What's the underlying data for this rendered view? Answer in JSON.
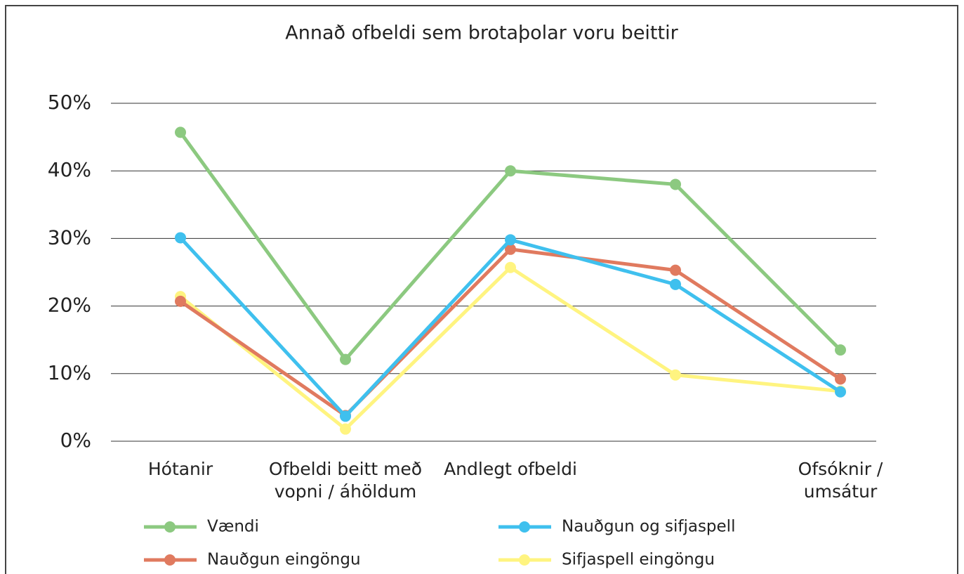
{
  "chart_data": {
    "type": "line",
    "title": "Annað ofbeldi sem brotaþolar voru beittir",
    "categories": [
      "Hótanir",
      "Ofbeldi beitt með vopni / áhöldum",
      "Andlegt ofbeldi",
      null,
      "Ofsóknir / umsátur"
    ],
    "series": [
      {
        "name": "Vændi",
        "color": "#8cc980",
        "values": [
          45.7,
          12.1,
          40,
          38,
          13.5
        ]
      },
      {
        "name": "Nauðgun og sifjaspell",
        "color": "#3fc0ee",
        "values": [
          30.1,
          3.7,
          29.8,
          23.2,
          7.3
        ]
      },
      {
        "name": "Nauðgun eingöngu",
        "color": "#e07a5f",
        "values": [
          20.7,
          3.8,
          28.4,
          25.3,
          9.2
        ]
      },
      {
        "name": "Sifjaspell eingöngu",
        "color": "#fff480",
        "values": [
          21.4,
          1.8,
          25.7,
          9.8,
          7.4
        ]
      }
    ],
    "ylim": [
      0,
      50
    ],
    "yticks": [
      {
        "value": 0,
        "label": "0%"
      },
      {
        "value": 10,
        "label": "10%"
      },
      {
        "value": 20,
        "label": "20%"
      },
      {
        "value": 30,
        "label": "30%"
      },
      {
        "value": 40,
        "label": "40%"
      },
      {
        "value": 50,
        "label": "50%"
      }
    ],
    "grid": true,
    "legend": "bottom"
  }
}
